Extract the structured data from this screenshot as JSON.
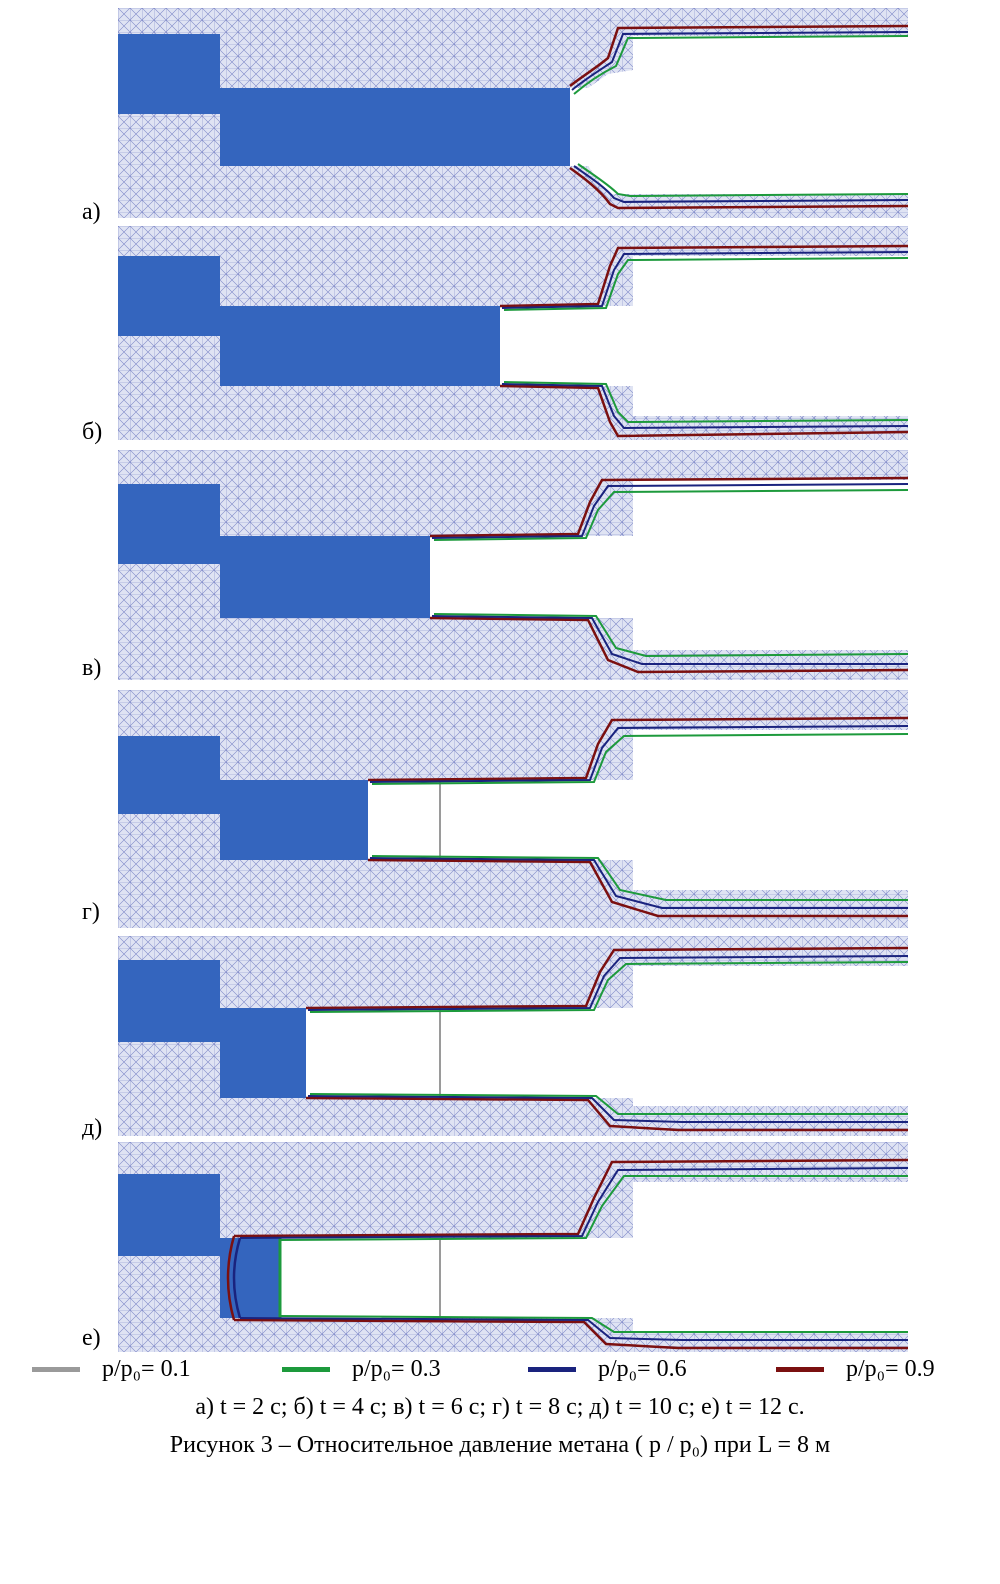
{
  "figure": {
    "panels": [
      {
        "label": "а)"
      },
      {
        "label": "б)"
      },
      {
        "label": "в)"
      },
      {
        "label": "г)"
      },
      {
        "label": "д)"
      },
      {
        "label": "е)"
      }
    ],
    "legend": [
      {
        "text": "p/p₀= 0.1",
        "color": "#9a9a9a"
      },
      {
        "text": "p/p₀= 0.3",
        "color": "#1d9a3c"
      },
      {
        "text": "p/p₀= 0.6",
        "color": "#1a237e"
      },
      {
        "text": "p/p₀= 0.9",
        "color": "#7b1010"
      }
    ],
    "times_caption": "а) t = 2 с; б) t = 4 с; в) t = 6 с; г) t = 8 с; д) t = 10 с; е) t = 12 с.",
    "caption": "Рисунок 3 – Относительное давление метана ( p / p₀) при L = 8 м",
    "colors": {
      "mesh_background": "#dfe3f3",
      "mesh_lines": "#7e88c8",
      "solid_region": "#3465be"
    }
  }
}
